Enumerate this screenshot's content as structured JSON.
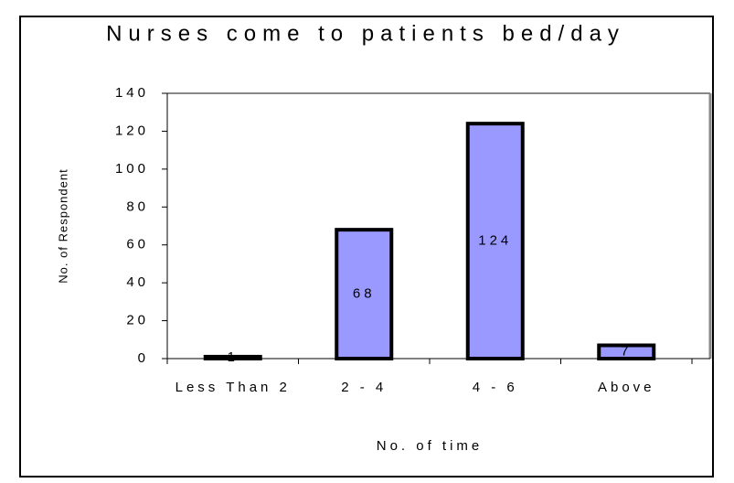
{
  "chart_data": {
    "type": "bar",
    "title": "Nurses come to patients bed/day",
    "x_label": "No. of time",
    "y_label": "No. of Respondent",
    "categories": [
      "Less Than 2",
      "2 - 4",
      "4 - 6",
      "Above"
    ],
    "values": [
      1,
      68,
      124,
      7
    ],
    "color": "#9999ff",
    "ylim": [
      0,
      140
    ],
    "yticks": [
      0,
      20,
      40,
      60,
      80,
      100,
      120,
      140
    ]
  }
}
